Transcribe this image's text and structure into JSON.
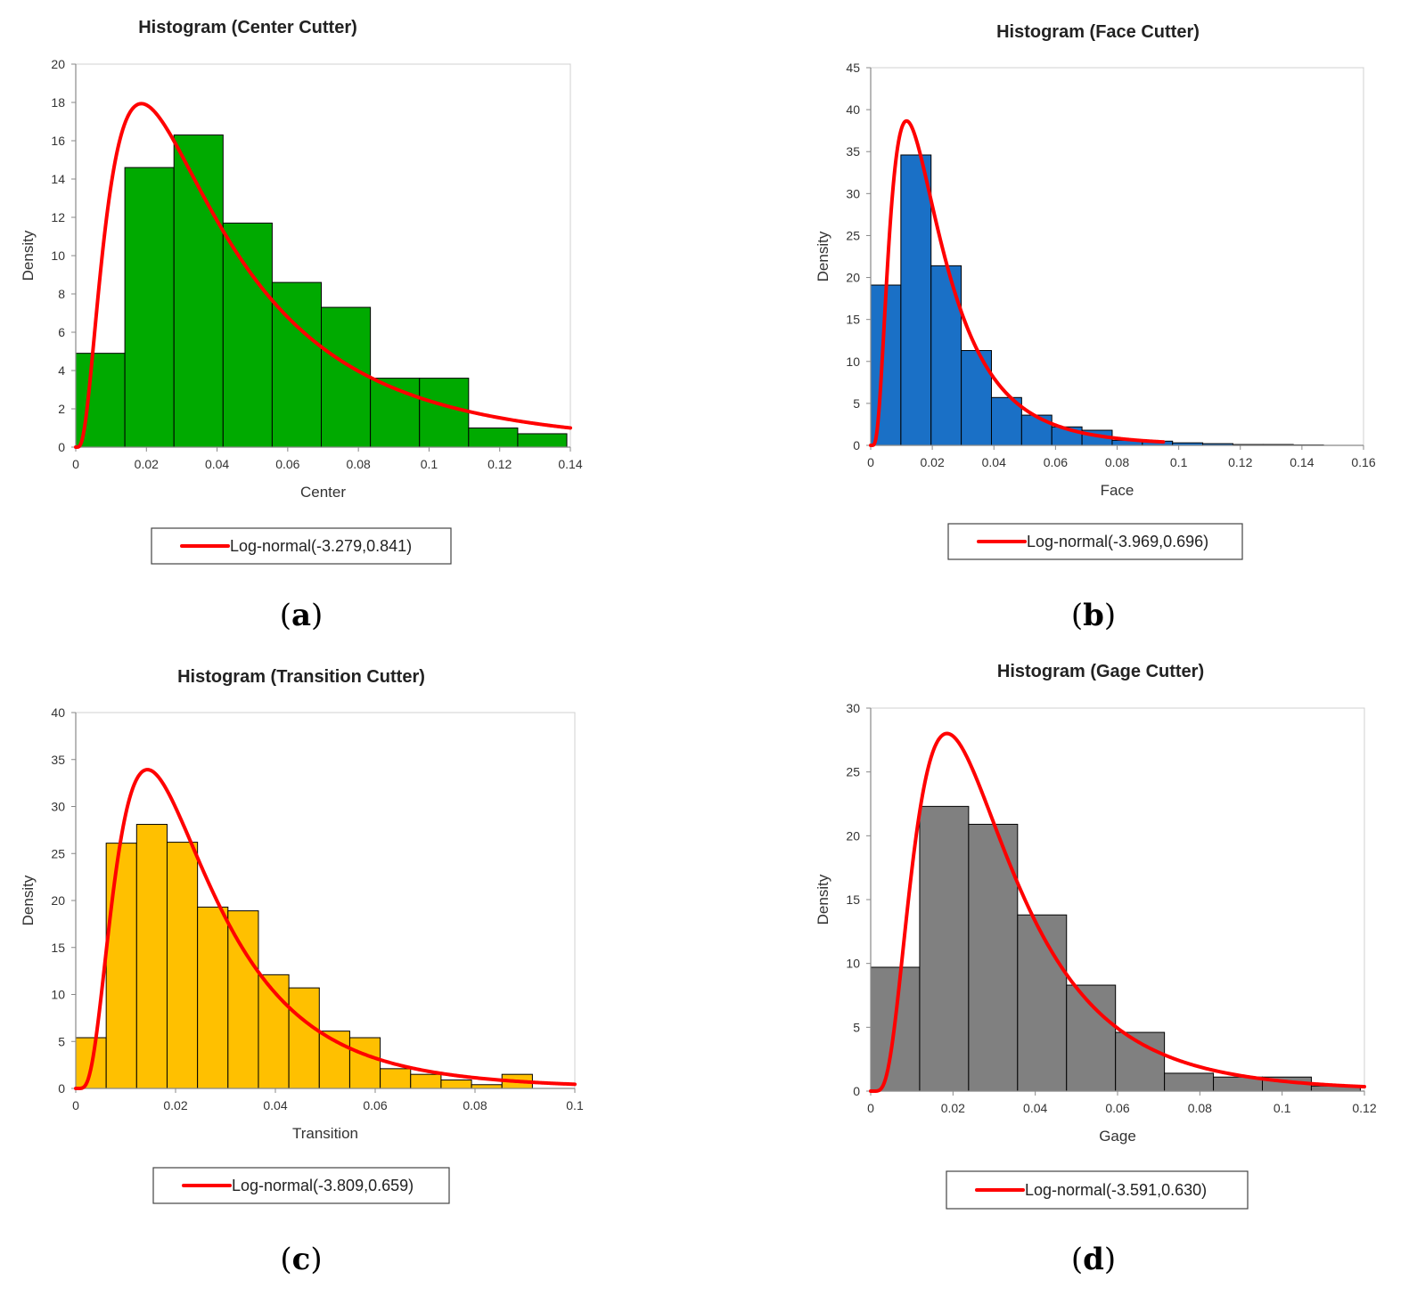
{
  "colors": {
    "fit_line": "#ff0000",
    "bar_edge": "#000000",
    "axis": "#888888"
  },
  "chart_data": [
    {
      "type": "bar",
      "title": "Histogram  (Center Cutter)",
      "xlabel": "Center",
      "ylabel": "Density",
      "xlim": [
        0,
        0.14
      ],
      "ylim": [
        0,
        20
      ],
      "xticks": [
        0,
        0.02,
        0.04,
        0.06,
        0.08,
        0.1,
        0.12,
        0.14
      ],
      "xtick_labels": [
        "0",
        "0.02",
        "0.04",
        "0.06",
        "0.08",
        "0.1",
        "0.12",
        "0.14"
      ],
      "yticks": [
        0,
        2,
        4,
        6,
        8,
        10,
        12,
        14,
        16,
        18,
        20
      ],
      "ytick_labels": [
        "0",
        "2",
        "4",
        "6",
        "8",
        "10",
        "12",
        "14",
        "16",
        "18",
        "20"
      ],
      "bar_color": "#00aa00",
      "bins": [
        {
          "x0": 0.0,
          "x1": 0.0139,
          "density": 4.9
        },
        {
          "x0": 0.0139,
          "x1": 0.0278,
          "density": 14.6
        },
        {
          "x0": 0.0278,
          "x1": 0.0417,
          "density": 16.3
        },
        {
          "x0": 0.0417,
          "x1": 0.0556,
          "density": 11.7
        },
        {
          "x0": 0.0556,
          "x1": 0.0695,
          "density": 8.6
        },
        {
          "x0": 0.0695,
          "x1": 0.0834,
          "density": 7.3
        },
        {
          "x0": 0.0834,
          "x1": 0.0973,
          "density": 3.6
        },
        {
          "x0": 0.0973,
          "x1": 0.1112,
          "density": 3.6
        },
        {
          "x0": 0.1112,
          "x1": 0.1251,
          "density": 1.0
        },
        {
          "x0": 0.1251,
          "x1": 0.139,
          "density": 0.7
        }
      ],
      "fit": {
        "name": "Log-normal",
        "mu": -3.279,
        "sigma": 0.841,
        "x_end": 0.14
      },
      "legend": "Log-normal(-3.279,0.841)",
      "caption": "a"
    },
    {
      "type": "bar",
      "title": "Histogram  (Face Cutter)",
      "xlabel": "Face",
      "ylabel": "Density",
      "xlim": [
        0,
        0.16
      ],
      "ylim": [
        0,
        45
      ],
      "xticks": [
        0,
        0.02,
        0.04,
        0.06,
        0.08,
        0.1,
        0.12,
        0.14,
        0.16
      ],
      "xtick_labels": [
        "0",
        "0.02",
        "0.04",
        "0.06",
        "0.08",
        "0.1",
        "0.12",
        "0.14",
        "0.16"
      ],
      "yticks": [
        0,
        5,
        10,
        15,
        20,
        25,
        30,
        35,
        40,
        45
      ],
      "ytick_labels": [
        "0",
        "5",
        "10",
        "15",
        "20",
        "25",
        "30",
        "35",
        "40",
        "45"
      ],
      "bar_color": "#1a70c6",
      "bins": [
        {
          "x0": 0.0,
          "x1": 0.0098,
          "density": 19.1
        },
        {
          "x0": 0.0098,
          "x1": 0.0196,
          "density": 34.6
        },
        {
          "x0": 0.0196,
          "x1": 0.0294,
          "density": 21.4
        },
        {
          "x0": 0.0294,
          "x1": 0.0392,
          "density": 11.3
        },
        {
          "x0": 0.0392,
          "x1": 0.049,
          "density": 5.7
        },
        {
          "x0": 0.049,
          "x1": 0.0588,
          "density": 3.6
        },
        {
          "x0": 0.0588,
          "x1": 0.0686,
          "density": 2.2
        },
        {
          "x0": 0.0686,
          "x1": 0.0784,
          "density": 1.8
        },
        {
          "x0": 0.0784,
          "x1": 0.0882,
          "density": 0.6
        },
        {
          "x0": 0.0882,
          "x1": 0.098,
          "density": 0.5
        },
        {
          "x0": 0.098,
          "x1": 0.1078,
          "density": 0.3
        },
        {
          "x0": 0.1078,
          "x1": 0.1176,
          "density": 0.2
        },
        {
          "x0": 0.1176,
          "x1": 0.1274,
          "density": 0.1
        },
        {
          "x0": 0.1274,
          "x1": 0.1372,
          "density": 0.1
        },
        {
          "x0": 0.1372,
          "x1": 0.147,
          "density": 0.05
        }
      ],
      "fit": {
        "name": "Log-normal",
        "mu": -3.969,
        "sigma": 0.696,
        "x_end": 0.095
      },
      "legend": "Log-normal(-3.969,0.696)",
      "caption": "b"
    },
    {
      "type": "bar",
      "title": "Histogram  (Transition Cutter)",
      "xlabel": "Transition",
      "ylabel": "Density",
      "xlim": [
        0,
        0.1
      ],
      "ylim": [
        0,
        40
      ],
      "xticks": [
        0,
        0.02,
        0.04,
        0.06,
        0.08,
        0.1
      ],
      "xtick_labels": [
        "0",
        "0.02",
        "0.04",
        "0.06",
        "0.08",
        "0.1"
      ],
      "yticks": [
        0,
        5,
        10,
        15,
        20,
        25,
        30,
        35,
        40
      ],
      "ytick_labels": [
        "0",
        "5",
        "10",
        "15",
        "20",
        "25",
        "30",
        "35",
        "40"
      ],
      "bar_color": "#ffc000",
      "bins": [
        {
          "x0": 0.0,
          "x1": 0.0061,
          "density": 5.4
        },
        {
          "x0": 0.0061,
          "x1": 0.0122,
          "density": 26.1
        },
        {
          "x0": 0.0122,
          "x1": 0.0183,
          "density": 28.1
        },
        {
          "x0": 0.0183,
          "x1": 0.0244,
          "density": 26.2
        },
        {
          "x0": 0.0244,
          "x1": 0.0305,
          "density": 19.3
        },
        {
          "x0": 0.0305,
          "x1": 0.0366,
          "density": 18.9
        },
        {
          "x0": 0.0366,
          "x1": 0.0427,
          "density": 12.1
        },
        {
          "x0": 0.0427,
          "x1": 0.0488,
          "density": 10.7
        },
        {
          "x0": 0.0488,
          "x1": 0.0549,
          "density": 6.1
        },
        {
          "x0": 0.0549,
          "x1": 0.061,
          "density": 5.4
        },
        {
          "x0": 0.061,
          "x1": 0.0671,
          "density": 2.1
        },
        {
          "x0": 0.0671,
          "x1": 0.0732,
          "density": 1.5
        },
        {
          "x0": 0.0732,
          "x1": 0.0793,
          "density": 0.9
        },
        {
          "x0": 0.0793,
          "x1": 0.0854,
          "density": 0.4
        },
        {
          "x0": 0.0854,
          "x1": 0.0915,
          "density": 1.5
        }
      ],
      "fit": {
        "name": "Log-normal",
        "mu": -3.809,
        "sigma": 0.659,
        "x_end": 0.1
      },
      "legend": "Log-normal(-3.809,0.659)",
      "caption": "c"
    },
    {
      "type": "bar",
      "title": "Histogram  (Gage Cutter)",
      "xlabel": "Gage",
      "ylabel": "Density",
      "xlim": [
        0,
        0.12
      ],
      "ylim": [
        0,
        30
      ],
      "xticks": [
        0,
        0.02,
        0.04,
        0.06,
        0.08,
        0.1,
        0.12
      ],
      "xtick_labels": [
        "0",
        "0.02",
        "0.04",
        "0.06",
        "0.08",
        "0.1",
        "0.12"
      ],
      "yticks": [
        0,
        5,
        10,
        15,
        20,
        25,
        30
      ],
      "ytick_labels": [
        "0",
        "5",
        "10",
        "15",
        "20",
        "25",
        "30"
      ],
      "bar_color": "#808080",
      "bins": [
        {
          "x0": 0.0,
          "x1": 0.0119,
          "density": 9.7
        },
        {
          "x0": 0.0119,
          "x1": 0.0238,
          "density": 22.3
        },
        {
          "x0": 0.0238,
          "x1": 0.0357,
          "density": 20.9
        },
        {
          "x0": 0.0357,
          "x1": 0.0476,
          "density": 13.8
        },
        {
          "x0": 0.0476,
          "x1": 0.0595,
          "density": 8.3
        },
        {
          "x0": 0.0595,
          "x1": 0.0714,
          "density": 4.6
        },
        {
          "x0": 0.0714,
          "x1": 0.0833,
          "density": 1.4
        },
        {
          "x0": 0.0833,
          "x1": 0.0952,
          "density": 1.1
        },
        {
          "x0": 0.0952,
          "x1": 0.1071,
          "density": 1.1
        },
        {
          "x0": 0.1071,
          "x1": 0.119,
          "density": 0.4
        }
      ],
      "fit": {
        "name": "Log-normal",
        "mu": -3.591,
        "sigma": 0.63,
        "x_end": 0.12
      },
      "legend": "Log-normal(-3.591,0.630)",
      "caption": "d"
    }
  ]
}
